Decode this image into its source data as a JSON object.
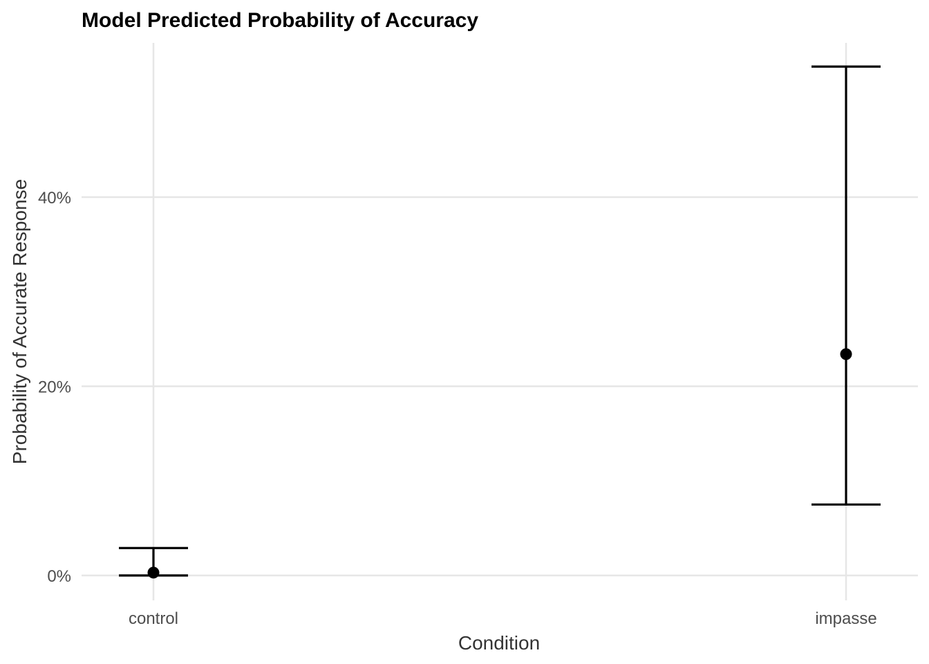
{
  "chart_data": {
    "type": "scatter",
    "title": "Model Predicted Probability of Accuracy",
    "xlabel": "Condition",
    "ylabel": "Probability of Accurate Response",
    "categories": [
      "control",
      "impasse"
    ],
    "estimate": [
      0.3,
      23.4
    ],
    "ci_low": [
      0.0,
      7.5
    ],
    "ci_high": [
      2.9,
      53.8
    ],
    "y_ticks": [
      0,
      20,
      40
    ],
    "y_tick_labels": [
      "0%",
      "20%",
      "40%"
    ],
    "ylim": [
      -2.5,
      56.5
    ],
    "grid": true,
    "legend": "none",
    "colors": {
      "marks": "#000000",
      "grid": "#e6e6e6"
    }
  }
}
